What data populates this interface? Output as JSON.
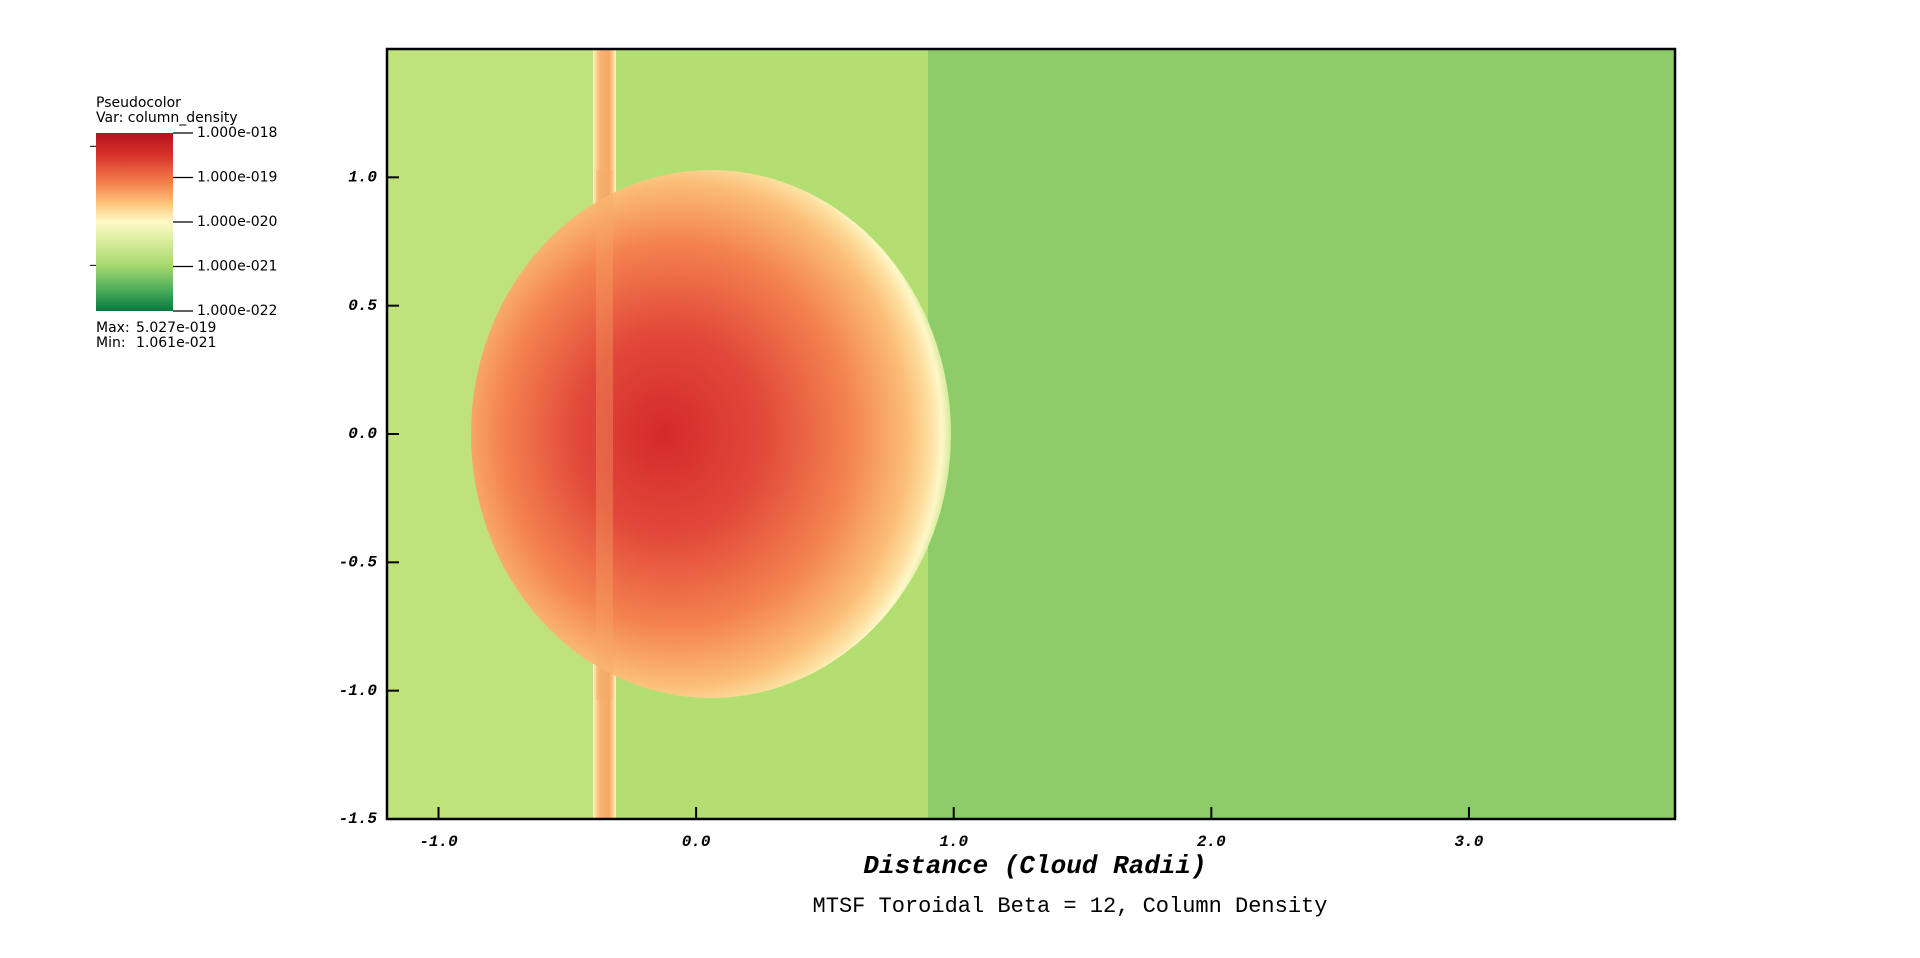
{
  "chart_data": {
    "type": "pseudocolor",
    "title": "MTSF Toroidal Beta = 12, Column Density",
    "xlabel": "Distance (Cloud Radii)",
    "xlim": [
      -1.2,
      3.8
    ],
    "ylim": [
      -1.5,
      1.5
    ],
    "xticks": [
      {
        "value": -1,
        "label": "-1.0"
      },
      {
        "value": 0,
        "label": "0.0"
      },
      {
        "value": 1,
        "label": "1.0"
      },
      {
        "value": 2,
        "label": "2.0"
      },
      {
        "value": 3,
        "label": "3.0"
      }
    ],
    "yticks": [
      {
        "value": 1,
        "label": "1.0"
      },
      {
        "value": 0.5,
        "label": "0.5"
      },
      {
        "value": 0,
        "label": "0.0"
      },
      {
        "value": -0.5,
        "label": "-0.5"
      },
      {
        "value": -1,
        "label": "-1.0"
      },
      {
        "value": -1.5,
        "label": "-1.5"
      }
    ],
    "colorbar": {
      "title": "Pseudocolor",
      "variable": "Var: column_density",
      "log_scale": true,
      "lim": [
        1e-22,
        1e-18
      ],
      "ticks": [
        {
          "value": 1e-18,
          "label": "1.000e-018"
        },
        {
          "value": 1e-19,
          "label": "1.000e-019"
        },
        {
          "value": 1e-20,
          "label": "1.000e-020"
        },
        {
          "value": 1e-21,
          "label": "1.000e-021"
        },
        {
          "value": 1e-22,
          "label": "1.000e-022"
        }
      ],
      "max_label": "Max:",
      "max": {
        "value": 5.027e-19,
        "label": "5.027e-019"
      },
      "min_label": "Min:",
      "min": {
        "value": 1.061e-21,
        "label": "1.061e-021"
      }
    }
  }
}
